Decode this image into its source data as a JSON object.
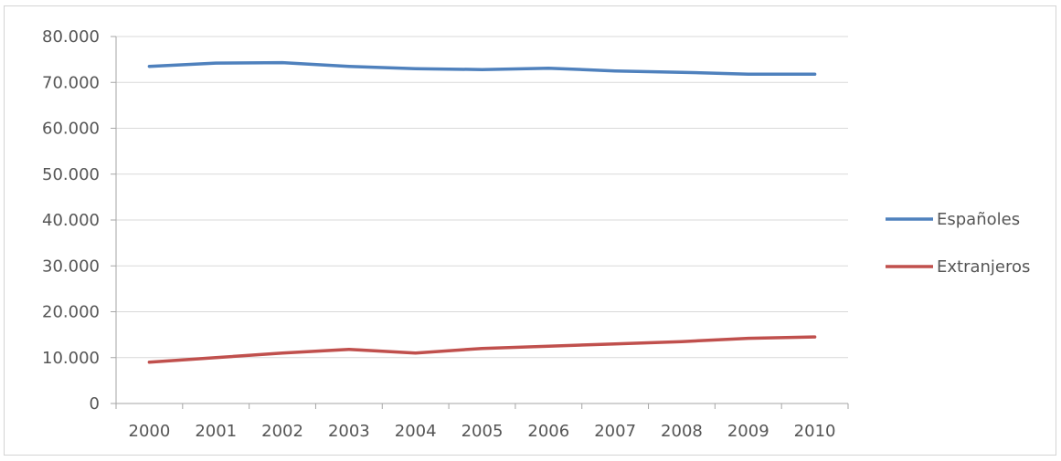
{
  "chart_data": {
    "type": "line",
    "title": "",
    "xlabel": "",
    "ylabel": "",
    "categories": [
      "2000",
      "2001",
      "2002",
      "2003",
      "2004",
      "2005",
      "2006",
      "2007",
      "2008",
      "2009",
      "2010"
    ],
    "ylim": [
      0,
      80000
    ],
    "yticks": [
      0,
      10000,
      20000,
      30000,
      40000,
      50000,
      60000,
      70000,
      80000
    ],
    "ytick_labels": [
      "0",
      "10.000",
      "20.000",
      "30.000",
      "40.000",
      "50.000",
      "60.000",
      "70.000",
      "80.000"
    ],
    "grid": true,
    "legend_position": "right",
    "series": [
      {
        "name": "Españoles",
        "color": "#4f81bd",
        "values": [
          73500,
          74200,
          74300,
          73500,
          73000,
          72800,
          73100,
          72500,
          72200,
          71800,
          71800
        ]
      },
      {
        "name": "Extranjeros",
        "color": "#c0504d",
        "values": [
          9000,
          10000,
          11000,
          11800,
          11000,
          12000,
          12500,
          13000,
          13500,
          14200,
          14500
        ]
      }
    ]
  }
}
